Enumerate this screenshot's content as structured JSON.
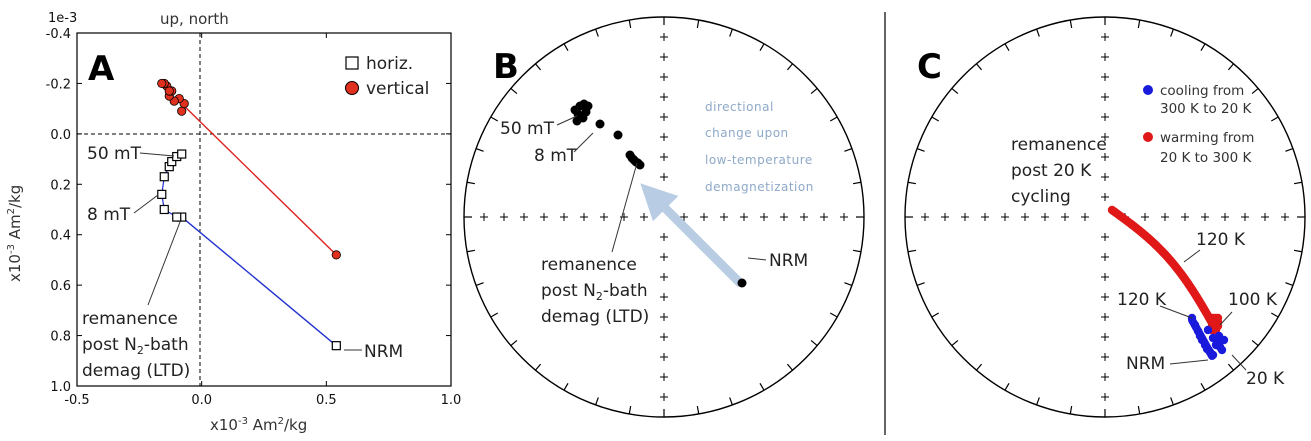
{
  "chart_data": [
    {
      "panel": "A",
      "type": "scatter",
      "axis_exponent": "1e-3",
      "top_label": "up, north",
      "xlabel": "x10-3 Am2/kg",
      "ylabel": "x10-3 Am2/kg",
      "xlim": [
        -0.5,
        1.0
      ],
      "ylim": [
        -0.4,
        1.0
      ],
      "y_inverted": true,
      "x_ticks": [
        "-0.5",
        "0.0",
        "0.5",
        "1.0"
      ],
      "y_ticks": [
        "-0.4",
        "-0.2",
        "0.0",
        "0.2",
        "0.4",
        "0.6",
        "0.8",
        "1.0"
      ],
      "legend": [
        "horiz.",
        "vertical"
      ],
      "series": [
        {
          "name": "horiz.",
          "marker": "open-square",
          "color": "#000000",
          "points": [
            [
              0.54,
              0.84
            ],
            [
              -0.08,
              0.33
            ],
            [
              -0.1,
              0.33
            ],
            [
              -0.15,
              0.3
            ],
            [
              -0.16,
              0.24
            ],
            [
              -0.15,
              0.17
            ],
            [
              -0.13,
              0.13
            ],
            [
              -0.12,
              0.11
            ],
            [
              -0.1,
              0.09
            ],
            [
              -0.08,
              0.08
            ]
          ]
        },
        {
          "name": "vertical",
          "marker": "filled-circle",
          "color": "#e0301e",
          "points": [
            [
              0.54,
              0.48
            ],
            [
              -0.08,
              -0.09
            ],
            [
              -0.07,
              -0.12
            ],
            [
              -0.09,
              -0.14
            ],
            [
              -0.11,
              -0.13
            ],
            [
              -0.13,
              -0.15
            ],
            [
              -0.12,
              -0.17
            ],
            [
              -0.14,
              -0.19
            ],
            [
              -0.15,
              -0.2
            ],
            [
              -0.16,
              -0.2
            ],
            [
              -0.13,
              -0.17
            ]
          ]
        }
      ],
      "fit_lines": [
        {
          "color": "#2233cc",
          "from": [
            0.54,
            0.84
          ],
          "to": [
            -0.08,
            0.33
          ]
        },
        {
          "color": "#dd2222",
          "from": [
            0.54,
            0.48
          ],
          "to": [
            -0.08,
            -0.12
          ]
        }
      ],
      "annotations": [
        "50 mT",
        "8 mT",
        "NRM",
        "remanence",
        "post N2-bath",
        "demag (LTD)"
      ]
    },
    {
      "panel": "B",
      "type": "scatter",
      "projection": "equal-area stereonet",
      "annotations": [
        "50 mT",
        "8 mT",
        "NRM",
        "remanence",
        "post N2-bath",
        "demag (LTD)",
        "directional",
        "change upon",
        "low-temperature",
        "demagnetization"
      ]
    },
    {
      "panel": "C",
      "type": "scatter",
      "projection": "equal-area stereonet",
      "legend": [
        "cooling from 300 K to 20 K",
        "warming from 20 K to 300 K"
      ],
      "series": [
        {
          "name": "cooling from 300 K to 20 K",
          "color": "#1a1adc"
        },
        {
          "name": "warming from 20 K to 300 K",
          "color": "#e01818"
        }
      ],
      "annotations": [
        "remanence",
        "post 20 K",
        "cycling",
        "120 K",
        "120 K",
        "100 K",
        "NRM",
        "20 K"
      ]
    }
  ],
  "text": {
    "a_letter": "A",
    "b_letter": "B",
    "c_letter": "C",
    "a_exponent": "1e-3",
    "a_top": "up, north",
    "a_xlabel_pre": "x10",
    "a_xlabel_sup1": "-3",
    "a_xlabel_mid": " Am",
    "a_xlabel_sup2": "2",
    "a_xlabel_post": "/kg",
    "a_ylabel_pre": "x10",
    "a_ylabel_sup1": "-3",
    "a_ylabel_mid": " Am",
    "a_ylabel_sup2": "2",
    "a_ylabel_post": "/kg",
    "leg_h": "horiz.",
    "leg_v": "vertical",
    "a_50": "50 mT",
    "a_8": "8 mT",
    "a_nrm": "NRM",
    "a_rem1": "remanence",
    "a_rem2_pre": "post N",
    "a_rem2_sub": "2",
    "a_rem2_post": "-bath",
    "a_rem3": "demag (LTD)",
    "b_50": "50 mT",
    "b_8": "8 mT",
    "b_nrm": "NRM",
    "b_rem1": "remanence",
    "b_rem2_pre": "post N",
    "b_rem2_sub": "2",
    "b_rem2_post": "-bath",
    "b_rem3": "demag (LTD)",
    "b_blue1": "directional",
    "b_blue2": "change upon",
    "b_blue3": "low-temperature",
    "b_blue4": "demagnetization",
    "c_leg1a": "cooling from",
    "c_leg1b": "300 K to 20 K",
    "c_leg2a": "warming from",
    "c_leg2b": "20 K to 300 K",
    "c_rem1": "remanence",
    "c_rem2": "post 20 K",
    "c_rem3": "cycling",
    "c_120a": "120 K",
    "c_120b": "120 K",
    "c_100": "100 K",
    "c_nrm": "NRM",
    "c_20": "20 K"
  },
  "x_tick_labels": [
    "-0.5",
    "0.0",
    "0.5",
    "1.0"
  ],
  "y_tick_labels": [
    "-0.4",
    "-0.2",
    "0.0",
    "0.2",
    "0.4",
    "0.6",
    "0.8",
    "1.0"
  ]
}
